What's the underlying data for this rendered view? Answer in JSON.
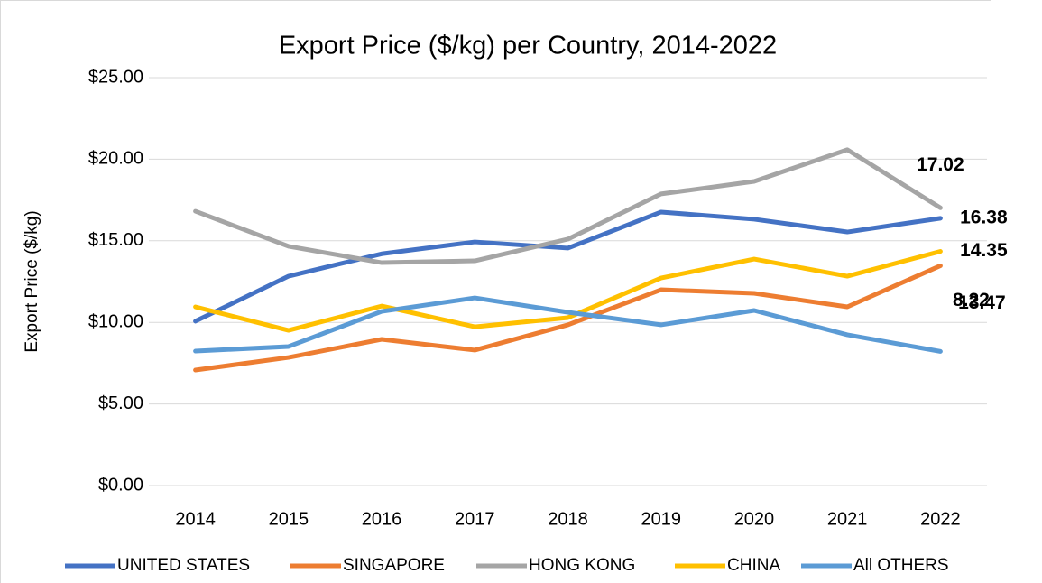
{
  "chart_data": {
    "type": "line",
    "title": "Export Price ($/kg) per Country, 2014-2022",
    "y_label": "Export Price ($/kg)",
    "categories": [
      "2014",
      "2015",
      "2016",
      "2017",
      "2018",
      "2019",
      "2020",
      "2021",
      "2022"
    ],
    "series": [
      {
        "name": "UNITED STATES",
        "color": "#4472c4",
        "label_color": "#8497b0",
        "values": [
          10.07,
          12.83,
          14.2,
          14.93,
          14.55,
          16.76,
          16.32,
          15.54,
          16.38
        ],
        "value_labels": [
          null,
          null,
          null,
          null,
          null,
          null,
          null,
          null,
          "16.38"
        ]
      },
      {
        "name": "SINGAPORE",
        "color": "#ed7d31",
        "label_color": "#ed7d31",
        "values": [
          7.08,
          7.85,
          8.96,
          8.3,
          9.85,
          12.0,
          11.78,
          10.95,
          13.47
        ],
        "value_labels": [
          null,
          null,
          null,
          null,
          null,
          null,
          null,
          null,
          "13.47"
        ]
      },
      {
        "name": "HONG KONG",
        "color": "#a5a5a5",
        "label_color": "#7f7f7f",
        "values": [
          16.81,
          14.66,
          13.66,
          13.77,
          15.1,
          17.87,
          18.64,
          20.58,
          17.02
        ],
        "value_labels": [
          null,
          null,
          null,
          null,
          null,
          null,
          null,
          null,
          "17.02"
        ]
      },
      {
        "name": "CHINA",
        "color": "#ffc000",
        "label_color": "#ffc000",
        "values": [
          10.95,
          9.51,
          11.0,
          9.73,
          10.29,
          12.72,
          13.88,
          12.83,
          14.35
        ],
        "value_labels": [
          null,
          null,
          null,
          null,
          null,
          null,
          null,
          null,
          "14.35"
        ]
      },
      {
        "name": "All OTHERS",
        "color": "#5b9bd5",
        "label_color": "#2e75b6",
        "values": [
          8.24,
          8.52,
          10.67,
          11.5,
          10.62,
          9.85,
          10.73,
          9.24,
          8.22
        ],
        "value_labels": [
          null,
          null,
          null,
          null,
          null,
          null,
          null,
          null,
          "8.22"
        ]
      }
    ],
    "ylim": [
      0,
      25
    ],
    "yticks": [
      {
        "value": 0,
        "label": "$0.00"
      },
      {
        "value": 5,
        "label": "$5.00"
      },
      {
        "value": 10,
        "label": "$10.00"
      },
      {
        "value": 15,
        "label": "$15.00"
      },
      {
        "value": 20,
        "label": "$20.00"
      },
      {
        "value": 25,
        "label": "$25.00"
      }
    ],
    "grid": true,
    "legend": "bottom"
  }
}
